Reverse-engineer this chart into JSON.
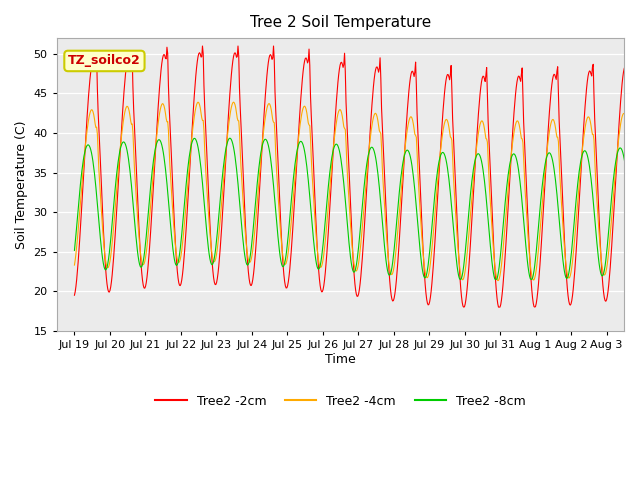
{
  "title": "Tree 2 Soil Temperature",
  "ylabel": "Soil Temperature (C)",
  "xlabel": "Time",
  "annotation_text": "TZ_soilco2",
  "annotation_bg": "#ffffcc",
  "annotation_border": "#cccc00",
  "ylim": [
    15,
    52
  ],
  "yticks": [
    15,
    20,
    25,
    30,
    35,
    40,
    45,
    50
  ],
  "xtick_labels": [
    "Jul 19",
    "Jul 20",
    "Jul 21",
    "Jul 22",
    "Jul 23",
    "Jul 24",
    "Jul 25",
    "Jul 26",
    "Jul 27",
    "Jul 28",
    "Jul 29",
    "Jul 30",
    "Jul 31",
    "Aug 1",
    "Aug 2",
    "Aug 3"
  ],
  "colors": {
    "Tree2 -2cm": "#ff0000",
    "Tree2 -4cm": "#ffaa00",
    "Tree2 -8cm": "#00cc00"
  },
  "plot_bg": "#ebebeb",
  "grid_color": "#ffffff",
  "n_days": 16,
  "pts_per_day": 48
}
